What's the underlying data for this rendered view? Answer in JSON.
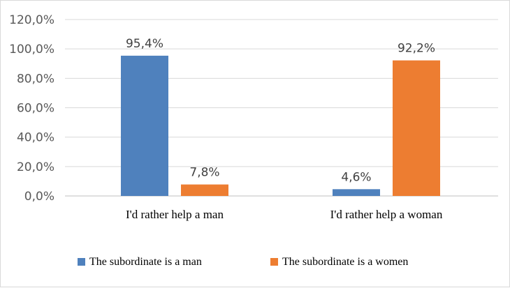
{
  "chart_data": {
    "type": "bar",
    "categories": [
      "I'd rather help a man",
      "I'd rather help a woman"
    ],
    "series": [
      {
        "name": "The subordinate is a man",
        "values": [
          95.4,
          4.6
        ],
        "labels": [
          "95,4%",
          "4,6%"
        ],
        "color": "#4f81bd"
      },
      {
        "name": "The subordinate is a women",
        "values": [
          7.8,
          92.2
        ],
        "labels": [
          "7,8%",
          "92,2%"
        ],
        "color": "#ed7d31"
      }
    ],
    "ylim": [
      0,
      120
    ],
    "yticks": [
      "0,0%",
      "20,0%",
      "40,0%",
      "60,0%",
      "80,0%",
      "100,0%",
      "120,0%"
    ],
    "grid": true,
    "legend_position": "bottom",
    "gridline_color": "#d9d9d9"
  }
}
